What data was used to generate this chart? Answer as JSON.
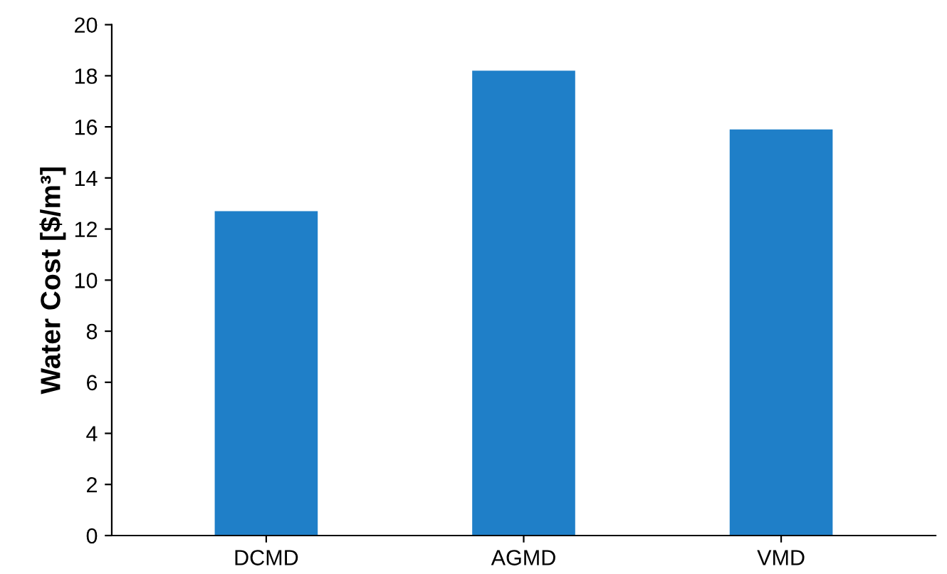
{
  "chart_data": {
    "type": "bar",
    "ylabel": "Water Cost [$/m³]",
    "categories": [
      "DCMD",
      "AGMD",
      "VMD"
    ],
    "values": [
      12.7,
      18.2,
      15.9
    ],
    "color": "#1f7fc8",
    "ylim": [
      0,
      20
    ],
    "yticks": [
      0,
      2,
      4,
      6,
      8,
      10,
      12,
      14,
      16,
      18,
      20
    ],
    "grid": false,
    "legend": false
  }
}
